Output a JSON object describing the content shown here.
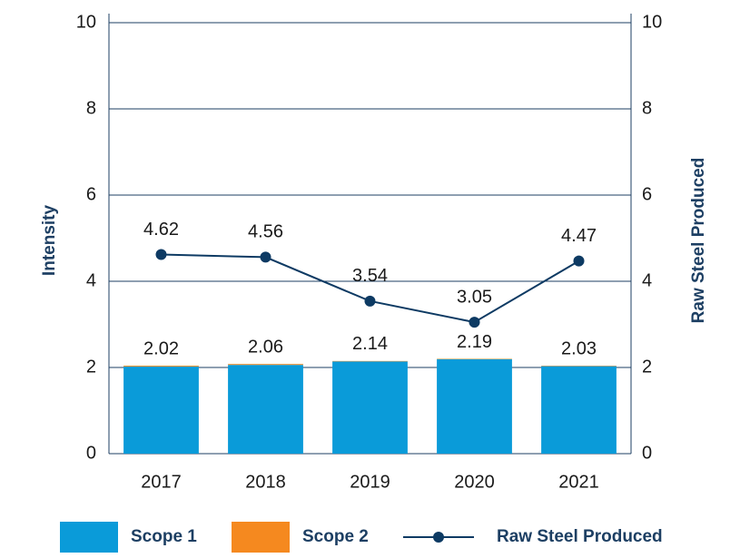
{
  "chart_data": {
    "type": "bar_line",
    "categories": [
      "2017",
      "2018",
      "2019",
      "2020",
      "2021"
    ],
    "series": [
      {
        "name": "Scope 1",
        "color": "#0a9bd9",
        "values": [
          2.02,
          2.06,
          2.14,
          2.19,
          2.03
        ]
      },
      {
        "name": "Scope 2",
        "color": "#f5891f",
        "values": [
          0.02,
          0.02,
          0.01,
          0.01,
          0.01
        ]
      },
      {
        "name": "Raw Steel Produced",
        "color": "#0d3a63",
        "axis": "y2",
        "values": [
          4.62,
          4.56,
          3.54,
          3.05,
          4.47
        ]
      }
    ],
    "ylabel": "Intensity",
    "y2label": "Raw Steel Produced",
    "ylim": [
      0,
      10
    ],
    "yticks": [
      0,
      2,
      4,
      6,
      8,
      10
    ],
    "y2lim": [
      0,
      10
    ],
    "y2ticks": [
      0,
      2,
      4,
      6,
      8,
      10
    ],
    "grid": true,
    "legend": "bottom"
  }
}
